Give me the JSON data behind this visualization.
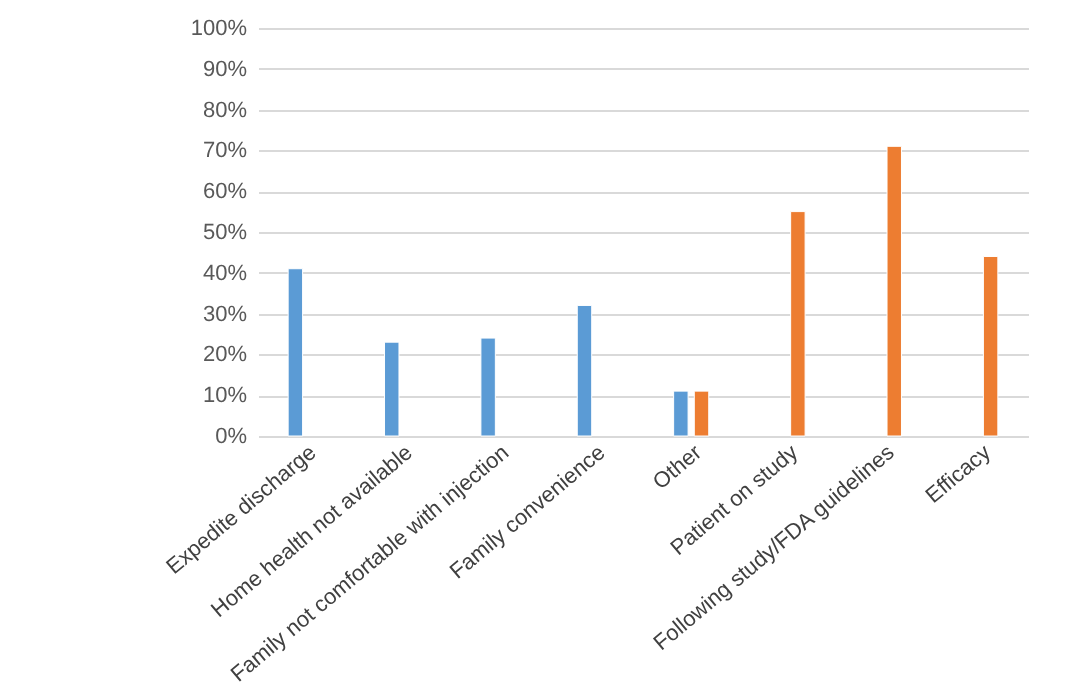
{
  "chart_data": {
    "type": "bar",
    "categories": [
      "Expedite discharge",
      "Home health not available",
      "Family not comfortable with injection",
      "Family convenience",
      "Other",
      "Patient on study",
      "Following study/FDA guidelines",
      "Efficacy"
    ],
    "series": [
      {
        "color": "#5b9bd5",
        "values": [
          41,
          23,
          24,
          32,
          11,
          null,
          null,
          null
        ]
      },
      {
        "color": "#ed7d31",
        "values": [
          null,
          null,
          null,
          null,
          11,
          55,
          71,
          44
        ]
      }
    ],
    "ylim": [
      0,
      100
    ],
    "yticks": [
      {
        "value": 0,
        "label": "0%"
      },
      {
        "value": 10,
        "label": "10%"
      },
      {
        "value": 20,
        "label": "20%"
      },
      {
        "value": 30,
        "label": "30%"
      },
      {
        "value": 40,
        "label": "40%"
      },
      {
        "value": 50,
        "label": "50%"
      },
      {
        "value": 60,
        "label": "60%"
      },
      {
        "value": 70,
        "label": "70%"
      },
      {
        "value": 80,
        "label": "80%"
      },
      {
        "value": 90,
        "label": "90%"
      },
      {
        "value": 100,
        "label": "100%"
      }
    ],
    "grid": "y",
    "legend": false
  }
}
